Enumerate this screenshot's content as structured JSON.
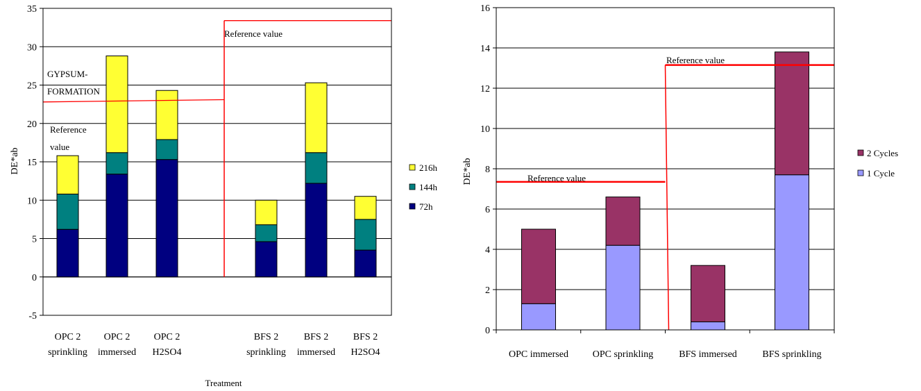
{
  "chart_data": [
    {
      "type": "bar",
      "stacked": true,
      "ylabel": "DE*ab",
      "xlabel": "Treatment",
      "ylim": [
        -5,
        35
      ],
      "yticks": [
        -5,
        0,
        5,
        10,
        15,
        20,
        25,
        30,
        35
      ],
      "grid": true,
      "legend_position": "right",
      "categories": [
        [
          "OPC 2",
          "sprinkling"
        ],
        [
          "OPC 2",
          "immersed"
        ],
        [
          "OPC 2",
          "H2SO4"
        ],
        [
          "BFS 2",
          "sprinkling"
        ],
        [
          "BFS 2",
          "immersed"
        ],
        [
          "BFS 2",
          "H2SO4"
        ]
      ],
      "series": [
        {
          "name": "72h",
          "color": "#000080",
          "values": [
            6.2,
            13.4,
            15.3,
            4.6,
            12.2,
            3.5
          ]
        },
        {
          "name": "144h",
          "color": "#008080",
          "values": [
            4.6,
            2.8,
            2.6,
            2.2,
            4.0,
            4.0
          ]
        },
        {
          "name": "216h",
          "color": "#ffff33",
          "values": [
            5.0,
            12.6,
            6.4,
            3.2,
            9.1,
            3.0
          ]
        }
      ],
      "annotations": {
        "gypsum": [
          "GYPSUM-",
          "FORMATION"
        ],
        "ref_left": [
          "Reference",
          "value"
        ],
        "ref_right": "Reference value"
      },
      "reference_lines": [
        {
          "x_from": 0.0,
          "x_to": 0.52,
          "y_start": 22.8,
          "y_end": 23.1
        },
        {
          "x_from": 0.52,
          "x_to": 1.0,
          "y": 33.4
        }
      ],
      "separator_x": 0.52,
      "line_color": "#ff0000"
    },
    {
      "type": "bar",
      "stacked": true,
      "ylabel": "DE*ab",
      "ylim": [
        0,
        16
      ],
      "yticks": [
        0,
        2,
        4,
        6,
        8,
        10,
        12,
        14,
        16
      ],
      "grid": true,
      "legend_position": "right",
      "categories": [
        "OPC immersed",
        "OPC sprinkling",
        "BFS immersed",
        "BFS sprinkling"
      ],
      "series": [
        {
          "name": "1 Cycle",
          "color": "#9999ff",
          "values": [
            1.3,
            4.2,
            0.4,
            7.7
          ]
        },
        {
          "name": "2 Cycles",
          "color": "#993366",
          "values": [
            3.7,
            2.4,
            2.8,
            6.1
          ]
        }
      ],
      "annotations": {
        "ref_left": "Reference value",
        "ref_right": "Reference value"
      },
      "reference_lines": [
        {
          "x_from": 0.0,
          "x_to": 0.5,
          "y": 7.35
        },
        {
          "x_from": 0.5,
          "x_to": 1.0,
          "y": 13.15
        }
      ],
      "separator_x": 0.5,
      "line_color": "#ff0000"
    }
  ]
}
